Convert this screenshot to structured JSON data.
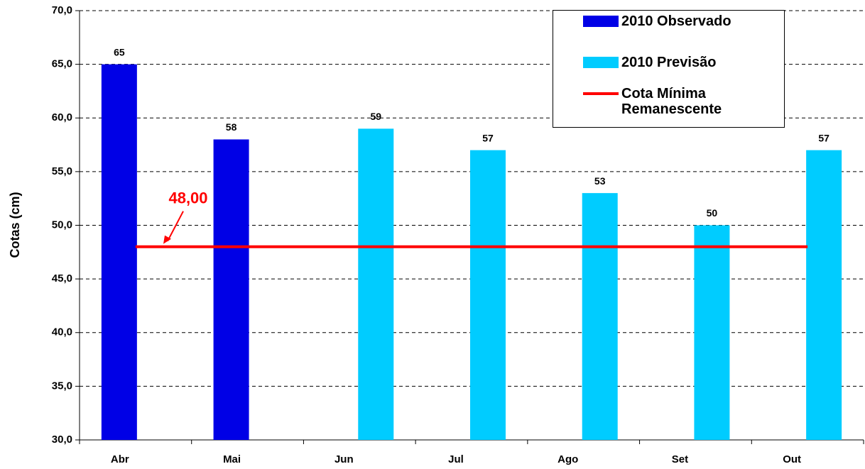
{
  "chart_data": {
    "type": "bar",
    "ylabel": "Cotas (cm)",
    "categories": [
      "Abr",
      "Mai",
      "Jun",
      "Jul",
      "Ago",
      "Set",
      "Out"
    ],
    "series": [
      {
        "name": "2010 Observado",
        "color": "#0000e6",
        "values": [
          65,
          58,
          null,
          null,
          null,
          null,
          null
        ]
      },
      {
        "name": "2010 Previsão",
        "color": "#00ccff",
        "values": [
          null,
          null,
          59,
          57,
          53,
          50,
          57
        ]
      },
      {
        "name": "Cota Mínima Remanescente",
        "color": "#ff0000",
        "type": "line",
        "values": [
          48,
          48,
          48,
          48,
          48,
          48,
          48
        ]
      }
    ],
    "annotations": [
      {
        "text": "48,00"
      }
    ],
    "ylim": [
      30,
      70
    ],
    "yticks": [
      {
        "value": 30,
        "label": "30,0"
      },
      {
        "value": 35,
        "label": "35,0"
      },
      {
        "value": 40,
        "label": "40,0"
      },
      {
        "value": 45,
        "label": "45,0"
      },
      {
        "value": 50,
        "label": "50,0"
      },
      {
        "value": 55,
        "label": "55,0"
      },
      {
        "value": 60,
        "label": "60,0"
      },
      {
        "value": 65,
        "label": "65,0"
      },
      {
        "value": 70,
        "label": "70,0"
      }
    ],
    "grid": true,
    "legend": "upper right"
  }
}
